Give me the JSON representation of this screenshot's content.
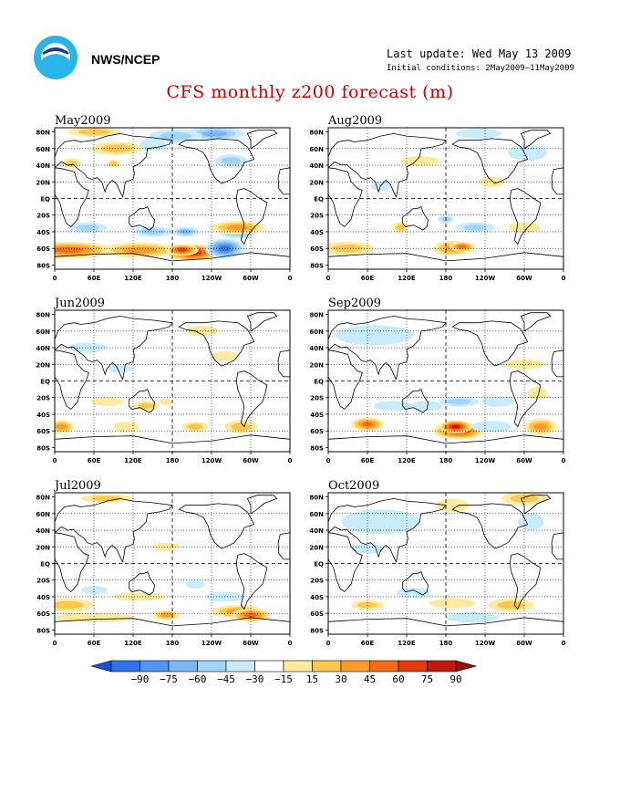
{
  "header": {
    "agency": "NWS/NCEP",
    "last_update": "Last update: Wed May 13 2009",
    "initial_conditions": "Initial conditions: 2May2009–11May2009",
    "title": "CFS monthly z200 forecast (m)"
  },
  "panels": [
    {
      "title": "May2009"
    },
    {
      "title": "Aug2009"
    },
    {
      "title": "Jun2009"
    },
    {
      "title": "Sep2009"
    },
    {
      "title": "Jul2009"
    },
    {
      "title": "Oct2009"
    }
  ],
  "axes": {
    "lat_ticks": [
      "80N",
      "60N",
      "40N",
      "20N",
      "EQ",
      "20S",
      "40S",
      "60S",
      "80S"
    ],
    "lon_ticks": [
      "0",
      "60E",
      "120E",
      "180",
      "120W",
      "60W",
      "0"
    ]
  },
  "colorbar": {
    "labels": [
      "−90",
      "−75",
      "−60",
      "−45",
      "−30",
      "−15",
      "15",
      "30",
      "45",
      "60",
      "75",
      "90"
    ],
    "colors": [
      "#1a4fd8",
      "#2f72ee",
      "#4f95f5",
      "#78b6f8",
      "#a2d3fa",
      "#c9ecfc",
      "#ffffff",
      "#ffeaa0",
      "#fdc74e",
      "#fc9b2a",
      "#f56b16",
      "#e23a0c",
      "#c01a08",
      "#9e0a04"
    ]
  }
}
